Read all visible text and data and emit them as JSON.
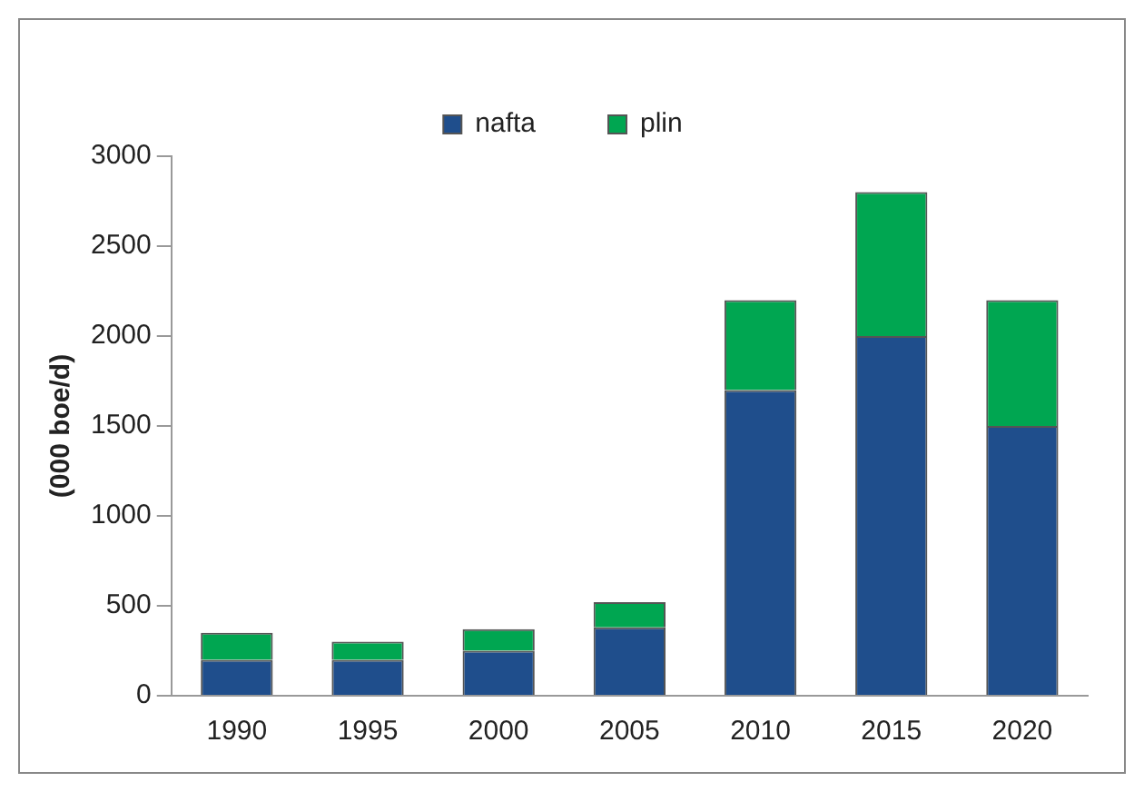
{
  "chart_data": {
    "type": "bar",
    "stacked": true,
    "ylabel": "(000 boe/d)",
    "categories": [
      "1990",
      "1995",
      "2000",
      "2005",
      "2010",
      "2015",
      "2020"
    ],
    "series": [
      {
        "name": "nafta",
        "color": "#1f4e8c",
        "values": [
          200,
          200,
          250,
          380,
          1700,
          2000,
          1500
        ]
      },
      {
        "name": "plin",
        "color": "#00a651",
        "values": [
          150,
          100,
          120,
          140,
          500,
          800,
          700
        ]
      }
    ],
    "ylim": [
      0,
      3000
    ],
    "yticks": [
      0,
      500,
      1000,
      1500,
      2000,
      2500,
      3000
    ],
    "grid": false,
    "legend": "top"
  }
}
